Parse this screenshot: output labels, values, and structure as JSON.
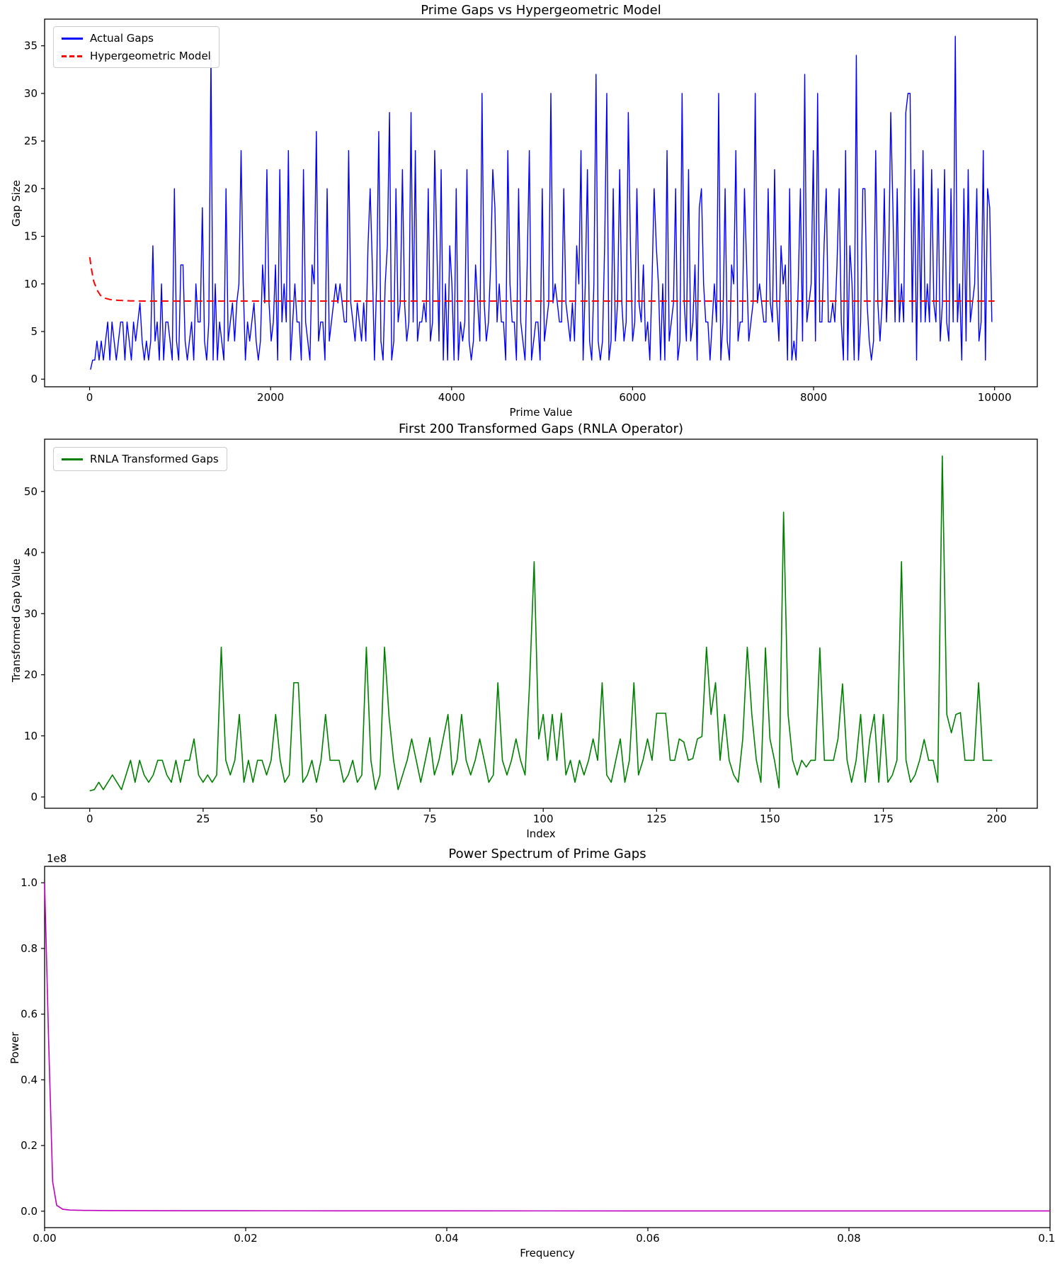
{
  "figure": {
    "background": "#ffffff",
    "spine_color": "#000000"
  },
  "chart_data": [
    {
      "id": "prime-gaps-vs-model",
      "type": "line",
      "title": "Prime Gaps vs Hypergeometric Model",
      "xlabel": "Prime Value",
      "ylabel": "Gap Size",
      "xlim": [
        -497,
        10472
      ],
      "ylim": [
        -0.8,
        37.8
      ],
      "xticks": [
        0,
        2000,
        4000,
        6000,
        8000,
        10000
      ],
      "xtick_labels": [
        "0",
        "2000",
        "4000",
        "6000",
        "8000",
        "10000"
      ],
      "yticks": [
        0,
        5,
        10,
        15,
        20,
        25,
        30,
        35
      ],
      "ytick_labels": [
        "0",
        "5",
        "10",
        "15",
        "20",
        "25",
        "30",
        "35"
      ],
      "grid": false,
      "legend_position": "upper-left",
      "series": [
        {
          "name": "Actual Gaps",
          "color": "#0000ff",
          "style": "solid",
          "width": 1.4,
          "x_start": 10,
          "x_end": 9970,
          "y": [
            1,
            2,
            2,
            4,
            2,
            4,
            2,
            4,
            6,
            2,
            6,
            4,
            2,
            4,
            6,
            6,
            2,
            6,
            4,
            2,
            6,
            4,
            6,
            8,
            4,
            2,
            4,
            2,
            4,
            14,
            4,
            6,
            2,
            10,
            2,
            6,
            6,
            4,
            2,
            20,
            4,
            2,
            12,
            12,
            4,
            2,
            4,
            6,
            2,
            10,
            6,
            6,
            18,
            4,
            2,
            6,
            34,
            2,
            10,
            2,
            6,
            4,
            2,
            20,
            4,
            6,
            8,
            4,
            8,
            10,
            24,
            10,
            2,
            6,
            4,
            6,
            8,
            4,
            2,
            4,
            12,
            8,
            22,
            8,
            4,
            6,
            12,
            2,
            22,
            6,
            10,
            6,
            24,
            2,
            6,
            10,
            6,
            6,
            2,
            22,
            6,
            4,
            2,
            12,
            10,
            26,
            4,
            6,
            6,
            2,
            20,
            4,
            6,
            8,
            10,
            8,
            10,
            8,
            6,
            6,
            24,
            8,
            6,
            4,
            8,
            6,
            4,
            8,
            4,
            14,
            20,
            12,
            2,
            10,
            26,
            4,
            2,
            10,
            14,
            28,
            2,
            4,
            20,
            6,
            8,
            22,
            8,
            4,
            6,
            28,
            6,
            24,
            4,
            6,
            6,
            8,
            6,
            20,
            4,
            6,
            24,
            14,
            4,
            22,
            2,
            10,
            2,
            14,
            10,
            2,
            20,
            2,
            6,
            4,
            6,
            22,
            4,
            2,
            4,
            12,
            8,
            4,
            30,
            8,
            4,
            6,
            12,
            22,
            18,
            6,
            10,
            6,
            6,
            2,
            24,
            10,
            6,
            6,
            2,
            20,
            6,
            4,
            2,
            12,
            24,
            2,
            4,
            6,
            6,
            2,
            20,
            4,
            6,
            8,
            30,
            8,
            10,
            8,
            6,
            6,
            20,
            8,
            6,
            4,
            8,
            4,
            14,
            10,
            24,
            2,
            10,
            22,
            4,
            2,
            10,
            32,
            4,
            2,
            4,
            14,
            30,
            2,
            4,
            20,
            4,
            8,
            22,
            8,
            4,
            6,
            28,
            14,
            4,
            6,
            20,
            8,
            6,
            12,
            4,
            6,
            2,
            10,
            20,
            14,
            10,
            2,
            10,
            2,
            24,
            4,
            6,
            8,
            20,
            2,
            4,
            30,
            8,
            4,
            22,
            4,
            6,
            12,
            2,
            18,
            20,
            10,
            6,
            6,
            2,
            6,
            10,
            6,
            30,
            2,
            6,
            20,
            4,
            2,
            12,
            10,
            24,
            4,
            6,
            6,
            20,
            12,
            4,
            6,
            8,
            30,
            8,
            10,
            8,
            6,
            6,
            20,
            8,
            6,
            22,
            8,
            4,
            14,
            10,
            12,
            2,
            20,
            2,
            4,
            2,
            10,
            20,
            4,
            32,
            6,
            8,
            10,
            24,
            4,
            30,
            6,
            6,
            14,
            20,
            6,
            6,
            8,
            6,
            12,
            20,
            6,
            2,
            24,
            2,
            14,
            10,
            2,
            34,
            2,
            6,
            20,
            20,
            8,
            4,
            2,
            4,
            24,
            8,
            4,
            8,
            20,
            6,
            12,
            28,
            18,
            6,
            20,
            6,
            10,
            6,
            28,
            30,
            30,
            6,
            22,
            2,
            20,
            6,
            24,
            6,
            10,
            6,
            22,
            8,
            6,
            20,
            4,
            8,
            22,
            6,
            4,
            20,
            6,
            36,
            6,
            10,
            2,
            20,
            4,
            22,
            6,
            8,
            10,
            20,
            4,
            6,
            24,
            2,
            20,
            18,
            6
          ]
        },
        {
          "name": "Hypergeometric Model",
          "color": "#ff0000",
          "style": "dashed",
          "width": 2,
          "x": [
            2,
            20,
            45,
            80,
            120,
            170,
            230,
            320,
            450,
            650,
            1000,
            10000
          ],
          "y": [
            12.8,
            11.6,
            10.3,
            9.4,
            8.8,
            8.5,
            8.35,
            8.27,
            8.22,
            8.2,
            8.2,
            8.2
          ]
        }
      ]
    },
    {
      "id": "rnla-transformed-gaps",
      "type": "line",
      "title": "First 200 Transformed Gaps (RNLA Operator)",
      "xlabel": "Index",
      "ylabel": "Transformed Gap Value",
      "xlim": [
        -9.95,
        208.95
      ],
      "ylim": [
        -1.85,
        58.55
      ],
      "xticks": [
        0,
        25,
        50,
        75,
        100,
        125,
        150,
        175,
        200
      ],
      "xtick_labels": [
        "0",
        "25",
        "50",
        "75",
        "100",
        "125",
        "150",
        "175",
        "200"
      ],
      "yticks": [
        0,
        10,
        20,
        30,
        40,
        50
      ],
      "ytick_labels": [
        "0",
        "10",
        "20",
        "30",
        "40",
        "50"
      ],
      "grid": false,
      "legend_position": "upper-left",
      "series": [
        {
          "name": "RNLA Transformed Gaps",
          "color": "#008000",
          "style": "solid",
          "width": 1.6,
          "x_start": 0,
          "x_end": 199,
          "y": [
            1.0,
            1.2,
            2.4,
            1.2,
            2.4,
            3.6,
            2.4,
            1.2,
            3.6,
            6.0,
            2.4,
            6.0,
            3.6,
            2.4,
            3.6,
            6.0,
            6.0,
            3.6,
            2.4,
            6.0,
            2.4,
            6.0,
            6.0,
            9.5,
            3.6,
            2.4,
            3.6,
            2.4,
            3.6,
            24.5,
            6.0,
            3.6,
            6.0,
            13.5,
            2.4,
            6.0,
            2.4,
            6.0,
            6.0,
            3.6,
            6.0,
            13.5,
            6.0,
            2.4,
            3.6,
            18.7,
            18.7,
            2.4,
            3.6,
            6.0,
            2.4,
            6.0,
            13.5,
            6.0,
            6.0,
            6.0,
            2.4,
            3.6,
            6.0,
            2.4,
            3.6,
            24.5,
            6.0,
            1.2,
            3.6,
            24.5,
            13.2,
            6.0,
            1.2,
            3.6,
            6.0,
            9.5,
            6.0,
            2.4,
            6.0,
            9.7,
            3.6,
            6.0,
            9.8,
            13.5,
            3.6,
            6.0,
            13.5,
            6.0,
            3.6,
            6.0,
            9.5,
            6.0,
            2.4,
            3.6,
            18.7,
            6.0,
            3.6,
            6.0,
            9.5,
            6.0,
            3.6,
            18.7,
            38.5,
            9.5,
            13.5,
            6.0,
            13.5,
            6.0,
            13.7,
            3.6,
            6.0,
            2.4,
            6.0,
            3.6,
            6.0,
            9.5,
            6.0,
            18.7,
            3.6,
            2.4,
            6.0,
            9.5,
            2.4,
            6.0,
            18.7,
            3.6,
            6.0,
            9.5,
            6.0,
            13.7,
            13.7,
            13.7,
            6.0,
            6.0,
            9.5,
            9.0,
            6.0,
            6.3,
            9.5,
            9.9,
            24.5,
            13.5,
            18.7,
            6.0,
            13.5,
            6.0,
            3.6,
            2.4,
            9.5,
            24.5,
            13.5,
            6.0,
            2.4,
            24.4,
            9.5,
            6.0,
            1.5,
            46.6,
            13.5,
            6.0,
            3.6,
            6.0,
            4.9,
            6.0,
            6.0,
            24.4,
            6.0,
            6.0,
            6.0,
            9.5,
            18.5,
            6.0,
            2.4,
            6.0,
            13.5,
            2.4,
            9.5,
            13.5,
            2.4,
            13.5,
            2.4,
            3.6,
            6.0,
            38.5,
            6.0,
            2.4,
            3.6,
            6.0,
            9.4,
            6.0,
            6.0,
            2.4,
            55.8,
            13.5,
            10.5,
            13.5,
            13.8,
            6.0,
            6.0,
            6.0,
            18.7,
            6.0,
            6.0,
            6.0
          ]
        }
      ]
    },
    {
      "id": "power-spectrum",
      "type": "line",
      "title": "Power Spectrum of Prime Gaps",
      "xlabel": "Frequency",
      "ylabel": "Power",
      "offset_text": "1e8",
      "xlim": [
        0,
        0.1
      ],
      "ylim": [
        -5000000,
        105000000
      ],
      "xticks": [
        0,
        0.02,
        0.04,
        0.06,
        0.08,
        0.1
      ],
      "xtick_labels": [
        "0.00",
        "0.02",
        "0.04",
        "0.06",
        "0.08",
        "0.10"
      ],
      "yticks": [
        0,
        20000000,
        40000000,
        60000000,
        80000000,
        100000000
      ],
      "ytick_labels": [
        "0.0",
        "0.2",
        "0.4",
        "0.6",
        "0.8",
        "1.0"
      ],
      "grid": false,
      "legend_position": "none",
      "series": [
        {
          "name": "",
          "color": "#bf00bf",
          "style": "solid",
          "width": 1.6,
          "x": [
            0,
            0.0004,
            0.0008,
            0.0012,
            0.0018,
            0.0025,
            0.004,
            0.006,
            0.01,
            0.015,
            0.02,
            0.03,
            0.04,
            0.05,
            0.06,
            0.07,
            0.08,
            0.09,
            0.1
          ],
          "y": [
            100000000,
            52000000,
            9000000,
            1800000,
            600000,
            350000,
            250000,
            200000,
            160000,
            140000,
            130000,
            110000,
            100000,
            95000,
            90000,
            85000,
            80000,
            80000,
            75000
          ]
        }
      ]
    }
  ]
}
